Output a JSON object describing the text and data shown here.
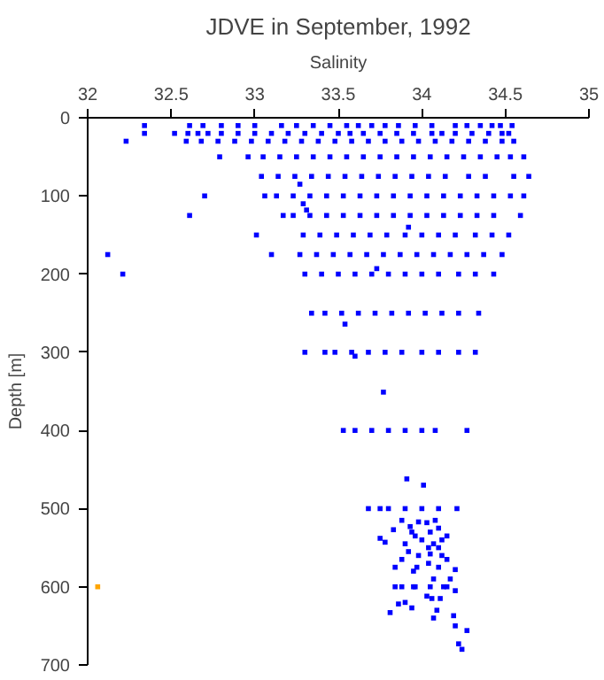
{
  "chart_data": {
    "type": "scatter",
    "title": "JDVE in September, 1992",
    "xlabel": "Salinity",
    "ylabel": "Depth [m]",
    "xlim": [
      32,
      35
    ],
    "xticks": [
      32,
      32.5,
      33,
      33.5,
      34,
      34.5,
      35
    ],
    "ylim": [
      700,
      0
    ],
    "yticks": [
      0,
      100,
      200,
      300,
      400,
      500,
      600,
      700
    ],
    "grid": false,
    "marker": "square",
    "series": [
      {
        "color": "#0000ff",
        "x": [
          32.34,
          32.61,
          32.69,
          32.8,
          32.9,
          33.0,
          33.16,
          33.25,
          33.35,
          33.45,
          33.55,
          33.62,
          33.7,
          33.78,
          33.86,
          33.96,
          34.06,
          34.2,
          34.27,
          34.35,
          34.42,
          34.47,
          34.54,
          32.34,
          32.52,
          32.6,
          32.66,
          32.72,
          32.8,
          32.9,
          33.0,
          33.1,
          33.2,
          33.3,
          33.4,
          33.5,
          33.57,
          33.65,
          33.75,
          33.85,
          33.95,
          34.06,
          34.12,
          34.2,
          34.3,
          34.4,
          34.48,
          34.52,
          32.23,
          32.59,
          32.68,
          32.78,
          32.88,
          32.98,
          33.08,
          33.18,
          33.28,
          33.38,
          33.48,
          33.58,
          33.68,
          33.78,
          33.88,
          33.98,
          34.08,
          34.18,
          34.28,
          34.38,
          34.48,
          34.55,
          32.79,
          32.96,
          33.05,
          33.15,
          33.25,
          33.35,
          33.45,
          33.55,
          33.65,
          33.75,
          33.85,
          33.95,
          34.05,
          34.15,
          34.25,
          34.35,
          34.45,
          34.53,
          34.61,
          33.04,
          33.14,
          33.24,
          33.34,
          33.44,
          33.54,
          33.64,
          33.74,
          33.84,
          33.94,
          34.04,
          34.14,
          34.28,
          34.38,
          34.55,
          34.64,
          33.27,
          32.7,
          33.06,
          33.13,
          33.23,
          33.33,
          33.43,
          33.53,
          33.63,
          33.73,
          33.83,
          33.93,
          34.03,
          34.13,
          34.23,
          34.33,
          34.43,
          34.53,
          34.61,
          33.29,
          33.31,
          32.61,
          33.17,
          33.23,
          33.33,
          33.43,
          33.53,
          33.63,
          33.73,
          33.83,
          33.93,
          34.03,
          34.13,
          34.23,
          34.33,
          34.43,
          34.59,
          33.92,
          33.01,
          33.29,
          33.39,
          33.49,
          33.59,
          33.69,
          33.79,
          33.9,
          34.0,
          34.1,
          34.2,
          34.32,
          34.42,
          34.52,
          32.12,
          33.1,
          33.27,
          33.37,
          33.47,
          33.57,
          33.67,
          33.77,
          33.87,
          33.97,
          34.07,
          34.17,
          34.27,
          34.37,
          34.48,
          32.21,
          33.3,
          33.4,
          33.5,
          33.6,
          33.7,
          33.8,
          33.9,
          34.0,
          34.1,
          34.22,
          34.32,
          34.43,
          33.73,
          33.34,
          33.42,
          33.52,
          33.62,
          33.72,
          33.82,
          33.92,
          34.02,
          34.12,
          34.22,
          34.34,
          33.54,
          33.3,
          33.42,
          33.48,
          33.58,
          33.68,
          33.78,
          33.88,
          34.0,
          34.1,
          34.22,
          34.32,
          33.6,
          33.77,
          33.53,
          33.6,
          33.7,
          33.8,
          33.9,
          34.0,
          34.08,
          34.27,
          33.91,
          34.01,
          33.68,
          33.75,
          33.8,
          33.9,
          34.0,
          34.1,
          34.21,
          33.88,
          33.93,
          33.98,
          34.03,
          34.08,
          33.83,
          33.94,
          33.96,
          34.05,
          34.1,
          34.15,
          34.0,
          34.07,
          34.12,
          33.75,
          33.78,
          33.9,
          34.04,
          34.1,
          33.92,
          33.98,
          34.05,
          34.12,
          34.15,
          33.88,
          33.97,
          34.04,
          34.1,
          34.2,
          34.17,
          34.07,
          33.95,
          33.84,
          33.96,
          34.13,
          34.2,
          34.11,
          34.03,
          33.88,
          33.9,
          33.94,
          34.06,
          34.09,
          33.81,
          33.86,
          34.07,
          34.19,
          34.27,
          34.22,
          34.24,
          34.2,
          33.84,
          33.95,
          34.05,
          34.15
        ],
        "values": [
          10,
          10,
          10,
          10,
          10,
          10,
          10,
          10,
          10,
          10,
          10,
          10,
          10,
          10,
          10,
          10,
          10,
          10,
          10,
          10,
          10,
          10,
          10,
          20,
          20,
          20,
          20,
          20,
          20,
          20,
          20,
          20,
          20,
          20,
          20,
          20,
          20,
          20,
          20,
          20,
          20,
          20,
          20,
          20,
          20,
          20,
          20,
          20,
          30,
          30,
          30,
          30,
          30,
          30,
          30,
          30,
          30,
          30,
          30,
          30,
          30,
          30,
          30,
          30,
          30,
          30,
          30,
          30,
          30,
          30,
          50,
          50,
          50,
          50,
          50,
          50,
          50,
          50,
          50,
          50,
          50,
          50,
          50,
          50,
          50,
          50,
          50,
          50,
          50,
          75,
          75,
          75,
          75,
          75,
          75,
          75,
          75,
          75,
          75,
          75,
          75,
          75,
          75,
          75,
          75,
          85,
          100,
          100,
          100,
          100,
          100,
          100,
          100,
          100,
          100,
          100,
          100,
          100,
          100,
          100,
          100,
          100,
          100,
          100,
          110,
          118,
          125,
          125,
          125,
          125,
          125,
          125,
          125,
          125,
          125,
          125,
          125,
          125,
          125,
          125,
          125,
          125,
          140,
          150,
          150,
          150,
          150,
          150,
          150,
          150,
          150,
          150,
          150,
          150,
          150,
          150,
          150,
          175,
          175,
          175,
          175,
          175,
          175,
          175,
          175,
          175,
          175,
          175,
          175,
          175,
          175,
          175,
          200,
          200,
          200,
          200,
          200,
          200,
          200,
          200,
          200,
          200,
          200,
          200,
          200,
          193,
          250,
          250,
          250,
          250,
          250,
          250,
          250,
          250,
          250,
          250,
          250,
          264,
          300,
          300,
          300,
          300,
          300,
          300,
          300,
          300,
          300,
          300,
          300,
          305,
          351,
          400,
          400,
          400,
          400,
          400,
          400,
          400,
          400,
          462,
          470,
          500,
          500,
          500,
          500,
          500,
          500,
          500,
          515,
          523,
          517,
          518,
          515,
          527,
          530,
          535,
          530,
          525,
          535,
          540,
          545,
          540,
          538,
          543,
          545,
          550,
          550,
          555,
          560,
          558,
          560,
          565,
          565,
          575,
          570,
          575,
          578,
          590,
          590,
          580,
          575,
          600,
          600,
          605,
          615,
          612,
          600,
          620,
          627,
          615,
          630,
          633,
          622,
          640,
          637,
          656,
          673,
          680,
          650,
          600,
          600,
          600,
          600
        ]
      },
      {
        "color": "#ffa500",
        "x": [
          32.06
        ],
        "values": [
          600
        ]
      }
    ]
  }
}
